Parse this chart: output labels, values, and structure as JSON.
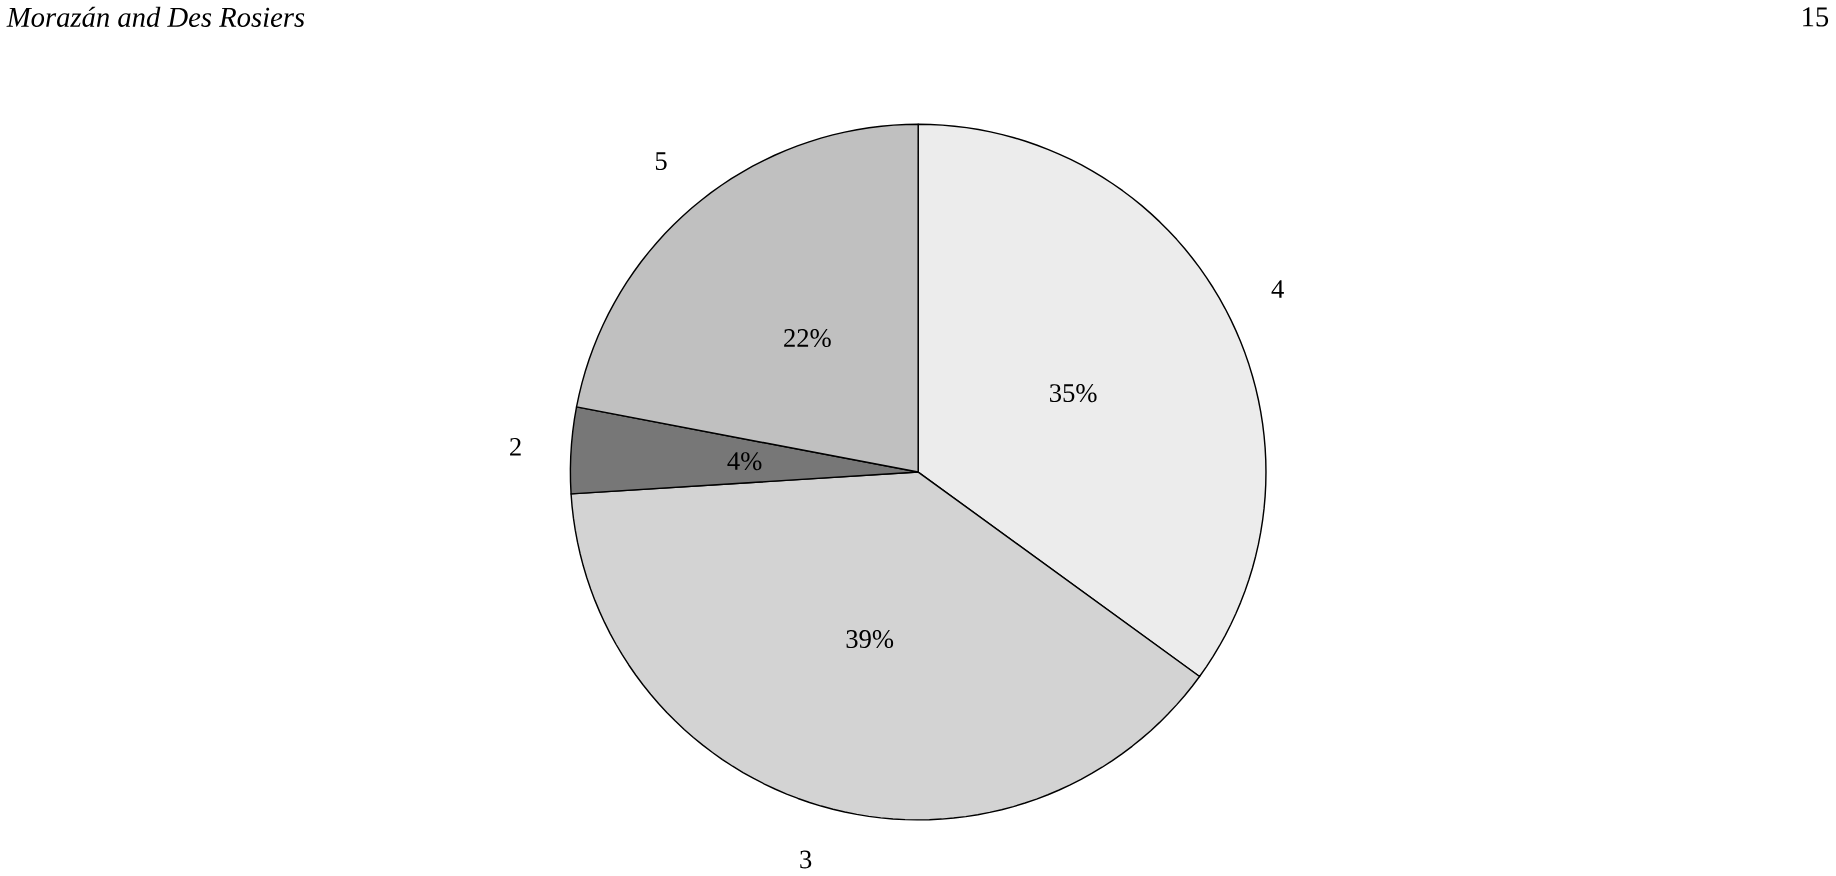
{
  "chart_data": {
    "type": "pie",
    "categories": [
      "4",
      "3",
      "2",
      "5"
    ],
    "values": [
      35,
      39,
      4,
      22
    ],
    "value_labels": [
      "35%",
      "39%",
      "4%",
      "22%"
    ],
    "colors": [
      "#ececec",
      "#d3d3d3",
      "#777777",
      "#c0c0c0"
    ],
    "annotations": [
      "Morazán and Des Rosiers",
      "15"
    ]
  }
}
